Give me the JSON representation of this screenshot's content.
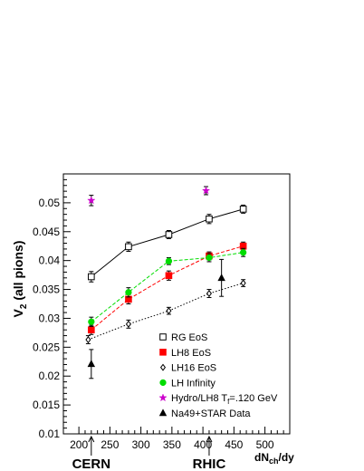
{
  "chart_data": {
    "type": "scatter",
    "title": "",
    "ylabel": "V",
    "ylabel_sub": "2",
    "ylabel_rest": " (all pions)",
    "xlabel": "dN",
    "xlabel_sub": "ch",
    "xlabel_rest": "/dy",
    "xlim": [
      175,
      540
    ],
    "ylim": [
      0.01,
      0.055
    ],
    "x_ticks": [
      200,
      250,
      300,
      350,
      400,
      450,
      500
    ],
    "y_ticks": [
      0.01,
      0.015,
      0.02,
      0.025,
      0.03,
      0.035,
      0.04,
      0.045,
      0.05
    ],
    "grid": false,
    "legend_position": "bottom-right",
    "series": [
      {
        "name": "RG EoS",
        "color": "#000000",
        "marker": "open-square",
        "line": "solid",
        "x": [
          220,
          280,
          345,
          410,
          465
        ],
        "y": [
          0.0372,
          0.0424,
          0.0445,
          0.0472,
          0.0489
        ],
        "err": [
          0.0009,
          0.0008,
          0.0007,
          0.0008,
          0.0007
        ]
      },
      {
        "name": "LH8 EoS",
        "color": "#ff0000",
        "marker": "filled-square",
        "line": "dashed",
        "x": [
          220,
          280,
          345,
          410,
          465
        ],
        "y": [
          0.028,
          0.0333,
          0.0374,
          0.0408,
          0.0425
        ],
        "err": [
          0.0008,
          0.0008,
          0.0008,
          0.0007,
          0.0007
        ]
      },
      {
        "name": "LH16 EoS",
        "color": "#000000",
        "marker": "open-diamond",
        "line": "dotted",
        "x": [
          215,
          280,
          345,
          410,
          465
        ],
        "y": [
          0.0263,
          0.029,
          0.0313,
          0.0343,
          0.0361
        ],
        "err": [
          0.0007,
          0.0007,
          0.0006,
          0.0007,
          0.0006
        ]
      },
      {
        "name": "LH Infinity",
        "color": "#00dd00",
        "marker": "filled-circle",
        "line": "dashed",
        "x": [
          220,
          280,
          345,
          410,
          465
        ],
        "y": [
          0.0294,
          0.0345,
          0.0399,
          0.0405,
          0.0414
        ],
        "err": [
          0.0008,
          0.0008,
          0.0006,
          0.0007,
          0.0007
        ]
      },
      {
        "name": "Hydro/LH8 T",
        "name_sub": "f",
        "name_rest": "=.120 GeV",
        "color": "#cc00cc",
        "marker": "star",
        "line": "none",
        "x": [
          220,
          405
        ],
        "y": [
          0.0504,
          0.0521
        ],
        "err": [
          0.0009,
          0.0007
        ]
      },
      {
        "name": "Na49+STAR Data",
        "color": "#000000",
        "marker": "filled-triangle",
        "line": "none",
        "x": [
          220,
          430
        ],
        "y": [
          0.0221,
          0.037
        ],
        "err": [
          0.0025,
          0.0032
        ]
      }
    ],
    "annotations": [
      {
        "text": "CERN",
        "x": 220
      },
      {
        "text": "RHIC",
        "x": 410
      }
    ]
  }
}
